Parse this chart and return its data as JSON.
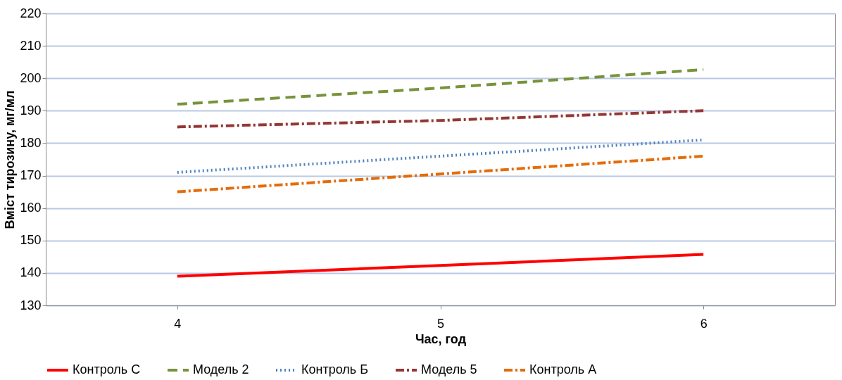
{
  "chart_data": {
    "type": "line",
    "xlabel": "Час, год",
    "ylabel": "Вміст тирозину, мг/мл",
    "categories": [
      "4",
      "5",
      "6"
    ],
    "series": [
      {
        "name": "Контроль С",
        "color": "#ff0000",
        "line_style": "solid",
        "values": [
          139,
          142.3,
          145.7
        ]
      },
      {
        "name": "Модель 2",
        "color": "#77933c",
        "line_style": "dashed",
        "values": [
          192,
          197,
          202.7
        ]
      },
      {
        "name": "Контроль Б",
        "color": "#4f81bd",
        "line_style": "dotted",
        "values": [
          171,
          176,
          181
        ]
      },
      {
        "name": "Модель 5",
        "color": "#953735",
        "line_style": "dashdot",
        "values": [
          185,
          187,
          190
        ]
      },
      {
        "name": "Контроль А",
        "color": "#e46c0a",
        "line_style": "dashdot",
        "values": [
          165,
          170.5,
          176
        ]
      }
    ],
    "ylim": [
      130,
      220
    ],
    "yticks": [
      130,
      140,
      150,
      160,
      170,
      180,
      190,
      200,
      210,
      220
    ],
    "grid": "y",
    "legend": "bottom",
    "marker": "none"
  }
}
